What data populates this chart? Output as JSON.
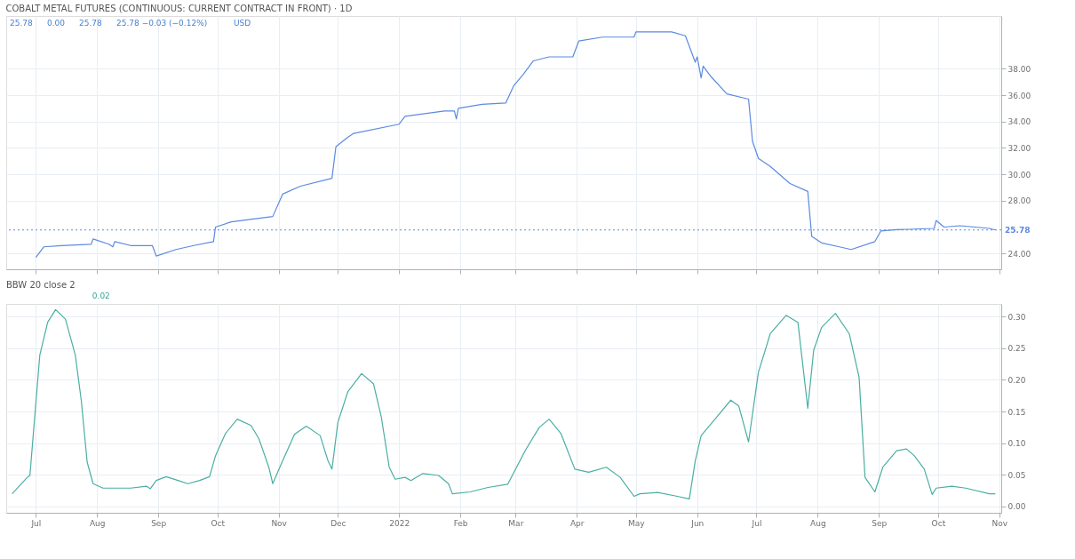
{
  "chart_data": [
    {
      "type": "line",
      "title": "COBALT METAL FUTURES (CONTINUOUS: CURRENT CONTRACT IN FRONT) · 1D",
      "annotations": [
        "25.78",
        "0.00",
        "25.78",
        "25.78 −0.03 (−0.12%)",
        "USD"
      ],
      "xlim": [
        "2021-06-16",
        "2022-11-02"
      ],
      "xticks": [
        "2021-07-01",
        "2021-08-01",
        "2021-09-01",
        "2021-10-01",
        "2021-11-01",
        "2021-12-01",
        "2022-01-01",
        "2022-02-01",
        "2022-03-01",
        "2022-04-01",
        "2022-05-01",
        "2022-06-01",
        "2022-07-01",
        "2022-08-01",
        "2022-09-01",
        "2022-10-01",
        "2022-11-01"
      ],
      "ylim": [
        22.8,
        42.0
      ],
      "yticks": [
        {
          "value": 24,
          "label": "24.00"
        },
        {
          "value": 28,
          "label": "28.00"
        },
        {
          "value": 30,
          "label": "30.00"
        },
        {
          "value": 32,
          "label": "32.00"
        },
        {
          "value": 34,
          "label": "34.00"
        },
        {
          "value": 36,
          "label": "36.00"
        },
        {
          "value": 38,
          "label": "38.00"
        }
      ],
      "grid": true,
      "tick_labels": "y",
      "ref_lines": [
        {
          "axis": "y",
          "value": 25.78,
          "label": "25.78",
          "color": "#5b8ae0",
          "line_style": "dotted"
        }
      ],
      "series": [
        {
          "color": "#5b8ae0",
          "x": [
            "2021-07-01",
            "2021-07-05",
            "2021-07-14",
            "2021-07-29",
            "2021-07-30",
            "2021-08-07",
            "2021-08-09",
            "2021-08-10",
            "2021-08-18",
            "2021-08-29",
            "2021-08-31",
            "2021-09-10",
            "2021-09-19",
            "2021-09-29",
            "2021-09-30",
            "2021-10-08",
            "2021-10-29",
            "2021-11-03",
            "2021-11-12",
            "2021-11-28",
            "2021-11-30",
            "2021-12-06",
            "2021-12-09",
            "2022-01-01",
            "2022-01-04",
            "2022-01-24",
            "2022-01-29",
            "2022-01-30",
            "2022-01-31",
            "2022-02-12",
            "2022-02-24",
            "2022-02-28",
            "2022-03-05",
            "2022-03-10",
            "2022-03-18",
            "2022-03-30",
            "2022-04-02",
            "2022-04-14",
            "2022-04-30",
            "2022-05-01",
            "2022-05-19",
            "2022-05-26",
            "2022-05-29",
            "2022-05-31",
            "2022-06-01",
            "2022-06-03",
            "2022-06-04",
            "2022-06-08",
            "2022-06-16",
            "2022-06-27",
            "2022-06-29",
            "2022-07-02",
            "2022-07-08",
            "2022-07-18",
            "2022-07-27",
            "2022-07-29",
            "2022-08-03",
            "2022-08-12",
            "2022-08-18",
            "2022-08-30",
            "2022-09-02",
            "2022-09-10",
            "2022-09-29",
            "2022-09-30",
            "2022-10-04",
            "2022-10-12",
            "2022-10-27",
            "2022-10-30"
          ],
          "values": [
            23.7,
            24.5,
            24.6,
            24.7,
            25.1,
            24.7,
            24.5,
            24.9,
            24.6,
            24.6,
            23.8,
            24.3,
            24.6,
            24.9,
            26.0,
            26.4,
            26.8,
            28.5,
            29.1,
            29.7,
            32.1,
            32.8,
            33.1,
            33.8,
            34.4,
            34.8,
            34.8,
            34.2,
            35.0,
            35.3,
            35.4,
            36.7,
            37.6,
            38.6,
            38.9,
            38.9,
            40.1,
            40.4,
            40.4,
            40.8,
            40.8,
            40.5,
            39.3,
            38.5,
            38.9,
            37.3,
            38.2,
            37.4,
            36.1,
            35.7,
            32.5,
            31.2,
            30.6,
            29.3,
            28.7,
            25.3,
            24.8,
            24.5,
            24.3,
            24.9,
            25.7,
            25.8,
            25.9,
            26.5,
            26.0,
            26.1,
            25.9,
            25.78
          ]
        }
      ]
    },
    {
      "type": "line",
      "title": "BBW 20 close 2",
      "annotations": [
        "0.02"
      ],
      "xlim": [
        "2021-06-16",
        "2022-11-02"
      ],
      "xticks": [
        {
          "value": "2021-07-01",
          "label": "Jul"
        },
        {
          "value": "2021-08-01",
          "label": "Aug"
        },
        {
          "value": "2021-09-01",
          "label": "Sep"
        },
        {
          "value": "2021-10-01",
          "label": "Oct"
        },
        {
          "value": "2021-11-01",
          "label": "Nov"
        },
        {
          "value": "2021-12-01",
          "label": "Dec"
        },
        {
          "value": "2022-01-01",
          "label": "2022"
        },
        {
          "value": "2022-02-01",
          "label": "Feb"
        },
        {
          "value": "2022-03-01",
          "label": "Mar"
        },
        {
          "value": "2022-04-01",
          "label": "Apr"
        },
        {
          "value": "2022-05-01",
          "label": "May"
        },
        {
          "value": "2022-06-01",
          "label": "Jun"
        },
        {
          "value": "2022-07-01",
          "label": "Jul"
        },
        {
          "value": "2022-08-01",
          "label": "Aug"
        },
        {
          "value": "2022-09-01",
          "label": "Sep"
        },
        {
          "value": "2022-10-01",
          "label": "Oct"
        },
        {
          "value": "2022-11-01",
          "label": "Nov"
        }
      ],
      "ylim": [
        -0.01,
        0.32
      ],
      "yticks": [
        {
          "value": 0,
          "label": "0.00"
        },
        {
          "value": 0.05,
          "label": "0.05"
        },
        {
          "value": 0.1,
          "label": "0.10"
        },
        {
          "value": 0.15,
          "label": "0.15"
        },
        {
          "value": 0.2,
          "label": "0.20"
        },
        {
          "value": 0.25,
          "label": "0.25"
        },
        {
          "value": 0.3,
          "label": "0.30"
        }
      ],
      "grid": true,
      "series": [
        {
          "color": "#4aaea4",
          "x": [
            "2021-06-19",
            "2021-06-27",
            "2021-06-28",
            "2021-06-30",
            "2021-07-03",
            "2021-07-07",
            "2021-07-11",
            "2021-07-16",
            "2021-07-21",
            "2021-07-24",
            "2021-07-27",
            "2021-07-30",
            "2021-08-04",
            "2021-08-18",
            "2021-08-26",
            "2021-08-28",
            "2021-08-31",
            "2021-09-05",
            "2021-09-11",
            "2021-09-16",
            "2021-09-22",
            "2021-09-27",
            "2021-09-30",
            "2021-10-05",
            "2021-10-11",
            "2021-10-18",
            "2021-10-22",
            "2021-10-27",
            "2021-10-29",
            "2021-11-03",
            "2021-11-09",
            "2021-11-15",
            "2021-11-22",
            "2021-11-26",
            "2021-11-28",
            "2021-12-01",
            "2021-12-06",
            "2021-12-13",
            "2021-12-19",
            "2021-12-23",
            "2021-12-27",
            "2021-12-30",
            "2022-01-04",
            "2022-01-07",
            "2022-01-13",
            "2022-01-21",
            "2022-01-26",
            "2022-01-28",
            "2022-02-06",
            "2022-02-15",
            "2022-02-25",
            "2022-03-06",
            "2022-03-13",
            "2022-03-18",
            "2022-03-24",
            "2022-03-31",
            "2022-04-07",
            "2022-04-16",
            "2022-04-23",
            "2022-04-30",
            "2022-05-03",
            "2022-05-12",
            "2022-05-22",
            "2022-05-28",
            "2022-05-31",
            "2022-06-03",
            "2022-06-10",
            "2022-06-18",
            "2022-06-22",
            "2022-06-27",
            "2022-07-02",
            "2022-07-08",
            "2022-07-16",
            "2022-07-22",
            "2022-07-27",
            "2022-07-30",
            "2022-08-03",
            "2022-08-10",
            "2022-08-17",
            "2022-08-22",
            "2022-08-25",
            "2022-08-30",
            "2022-09-03",
            "2022-09-10",
            "2022-09-15",
            "2022-09-19",
            "2022-09-24",
            "2022-09-28",
            "2022-09-30",
            "2022-10-08",
            "2022-10-15",
            "2022-10-27",
            "2022-10-30"
          ],
          "values": [
            0.02,
            0.047,
            0.049,
            0.125,
            0.239,
            0.291,
            0.311,
            0.296,
            0.239,
            0.168,
            0.07,
            0.036,
            0.029,
            0.029,
            0.032,
            0.028,
            0.041,
            0.047,
            0.041,
            0.036,
            0.041,
            0.047,
            0.08,
            0.115,
            0.138,
            0.128,
            0.107,
            0.062,
            0.036,
            0.072,
            0.114,
            0.127,
            0.112,
            0.072,
            0.059,
            0.133,
            0.181,
            0.21,
            0.194,
            0.141,
            0.062,
            0.043,
            0.046,
            0.041,
            0.052,
            0.049,
            0.036,
            0.02,
            0.023,
            0.03,
            0.035,
            0.089,
            0.125,
            0.138,
            0.115,
            0.059,
            0.054,
            0.062,
            0.046,
            0.016,
            0.02,
            0.022,
            0.016,
            0.012,
            0.072,
            0.112,
            0.138,
            0.168,
            0.159,
            0.102,
            0.212,
            0.273,
            0.302,
            0.291,
            0.155,
            0.247,
            0.283,
            0.305,
            0.273,
            0.204,
            0.046,
            0.023,
            0.062,
            0.088,
            0.091,
            0.08,
            0.059,
            0.019,
            0.029,
            0.032,
            0.029,
            0.02,
            0.02
          ]
        }
      ]
    }
  ]
}
